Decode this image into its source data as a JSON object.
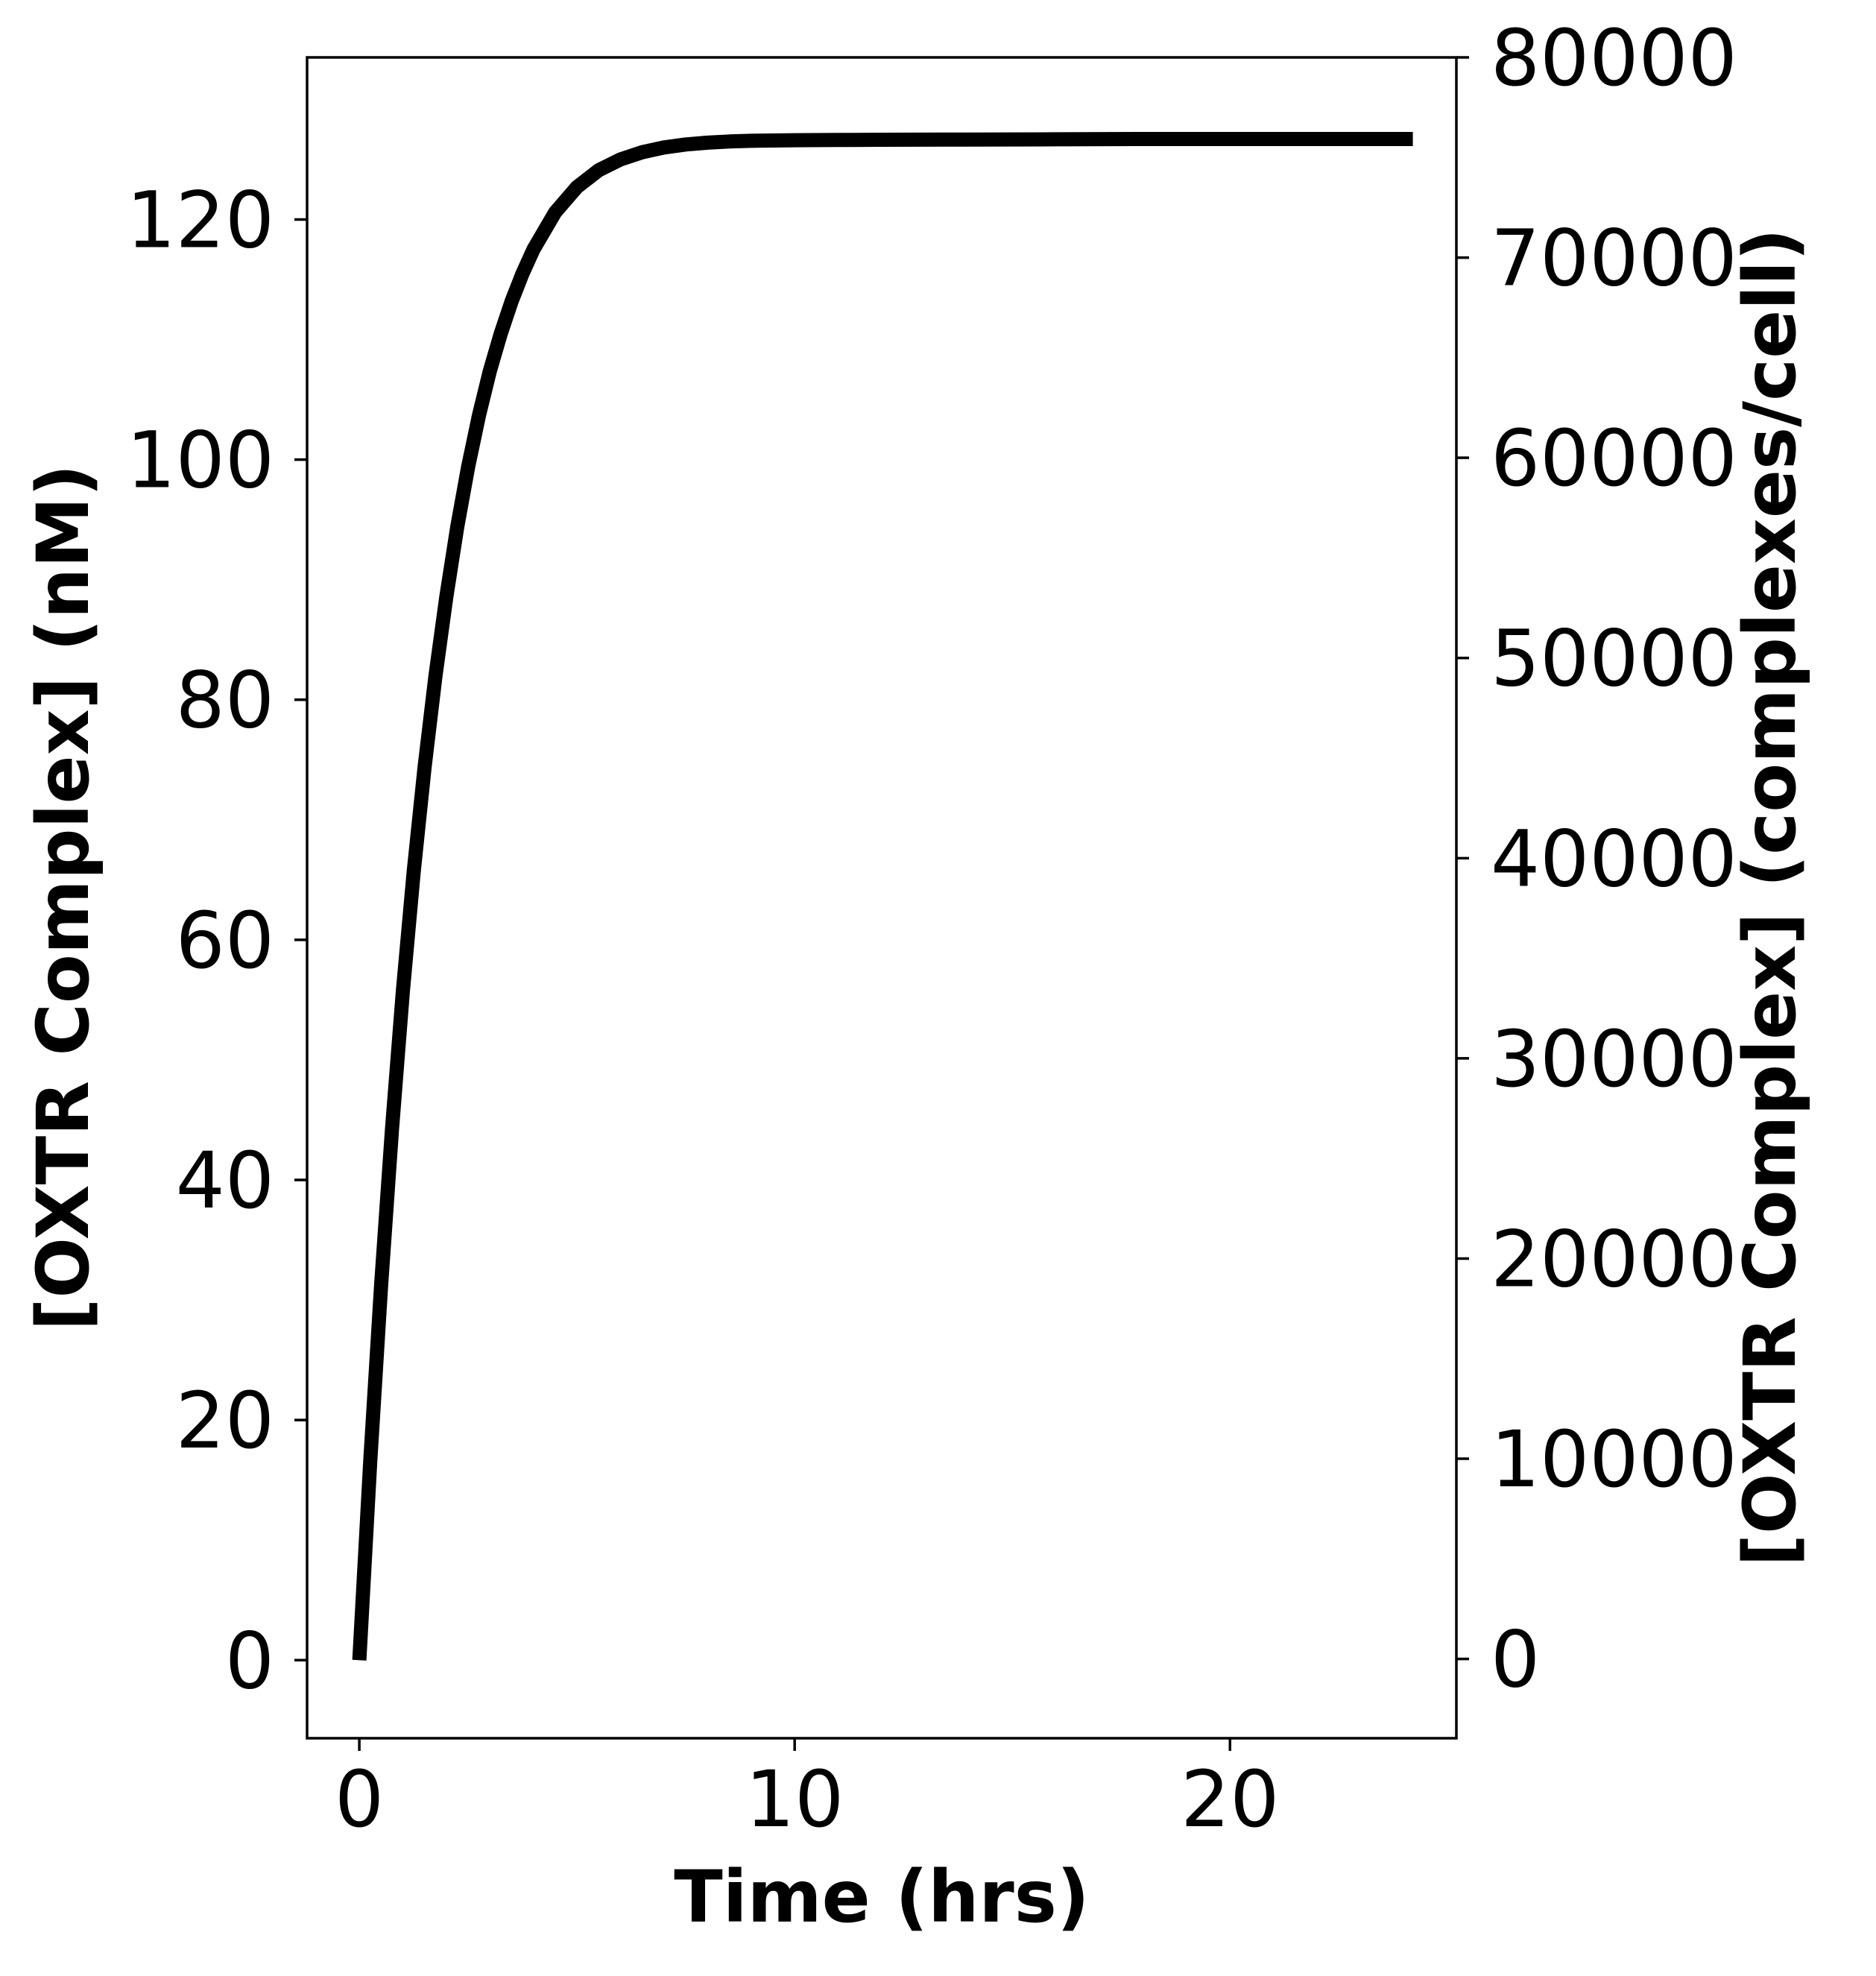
{
  "chart_data": {
    "type": "line",
    "title": "",
    "xlabel": "Time (hrs)",
    "ylabel": "[OXTR Complex] (nM)",
    "y2label": "[OXTR Complex] (complexes/cell)",
    "xlim": [
      -1.2,
      25.2
    ],
    "ylim": [
      -6.5,
      133.5
    ],
    "y2lim": [
      -3960,
      80000
    ],
    "x_ticks": [
      0,
      10,
      20
    ],
    "y_ticks": [
      0,
      20,
      40,
      60,
      80,
      100,
      120
    ],
    "y2_ticks": [
      0,
      10000,
      20000,
      30000,
      40000,
      50000,
      60000,
      70000,
      80000
    ],
    "grid": false,
    "legend": "none",
    "line_color": "#000000",
    "series": [
      {
        "x": [
          0,
          0.25,
          0.5,
          0.75,
          1,
          1.25,
          1.5,
          1.75,
          2,
          2.25,
          2.5,
          2.75,
          3,
          3.25,
          3.5,
          3.75,
          4,
          4.5,
          5,
          5.5,
          6,
          6.5,
          7,
          7.5,
          8,
          8.5,
          9,
          10,
          11,
          12,
          14,
          16,
          18,
          20,
          22,
          24.2
        ],
        "y": [
          0,
          16.5,
          31.2,
          44.2,
          55.7,
          65.7,
          74.4,
          82.0,
          88.6,
          94.4,
          99.4,
          103.7,
          107.4,
          110.5,
          113.2,
          115.5,
          117.5,
          120.6,
          122.7,
          124.1,
          125.0,
          125.6,
          126.0,
          126.25,
          126.4,
          126.5,
          126.55,
          126.6,
          126.62,
          126.64,
          126.66,
          126.68,
          126.7,
          126.7,
          126.7,
          126.7
        ]
      }
    ]
  }
}
